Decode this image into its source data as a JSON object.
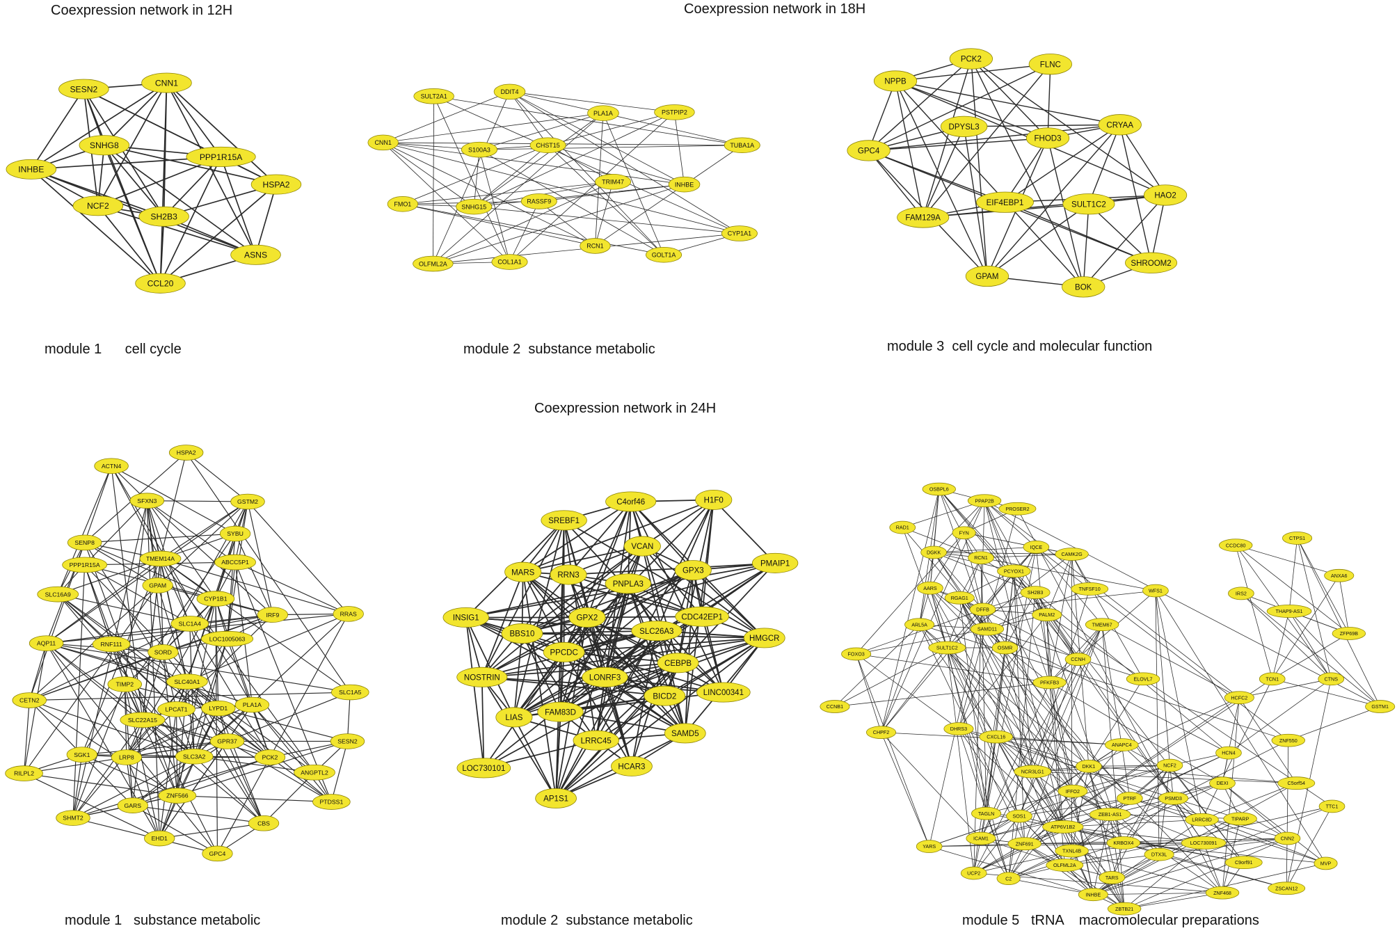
{
  "figure": {
    "title_12h": "Coexpression network in 12H",
    "title_18h": "Coexpression network in 18H",
    "title_24h": "Coexpression network in 24H"
  },
  "captions": {
    "top_left": "module 1      cell cycle",
    "top_middle": "module 2  substance metabolic",
    "top_right": "module 3  cell cycle and molecular function",
    "bottom_left": "module 1   substance metabolic",
    "bottom_middle": "module 2  substance metabolic",
    "bottom_right": "module 5   tRNA    macromolecular preparations"
  },
  "colors": {
    "node_fill": "#f2e52e",
    "node_outline": "#8c8200",
    "edge": "#2a2a2a",
    "text": "#111111"
  },
  "networks": [
    {
      "nodes": [
        "SESN2",
        "CNN1",
        "SNHG8",
        "PPP1R15A",
        "INHBE",
        "HSPA2",
        "NCF2",
        "SH2B3",
        "ASNS",
        "CCL20"
      ]
    },
    {
      "nodes": [
        "SULT2A1",
        "DDIT4",
        "PLA1A",
        "PSTPIP2",
        "CNN1",
        "S100A3",
        "CHST15",
        "TUBA1A",
        "TRIM47",
        "INHBE",
        "FMO1",
        "SNHG15",
        "RASSF9",
        "CYP1A1",
        "RCN1",
        "GOLT1A",
        "OLFML2A",
        "COL1A1"
      ]
    },
    {
      "nodes": [
        "NPPB",
        "PCK2",
        "FLNC",
        "DPYSL3",
        "FHOD3",
        "CRYAA",
        "GPC4",
        "FAM129A",
        "EIF4EBP1",
        "SULT1C2",
        "HAO2",
        "SHROOM2",
        "GPAM",
        "BOK"
      ]
    },
    {
      "nodes": [
        "HSPA2",
        "ACTN4",
        "SFXN3",
        "GSTM2",
        "SYBU",
        "SENP8",
        "PPP1R15A",
        "TMEM14A",
        "ABCC5P1",
        "GPAM",
        "CYP1B1",
        "SLC16A9",
        "IRF9",
        "RRAS",
        "SLC1A4",
        "LOC1005063",
        "AQP11",
        "RNF111",
        "SORD",
        "TIMP2",
        "SLC40A1",
        "SLC1A5",
        "CETN2",
        "LPCAT1",
        "LYPD1",
        "PLA1A",
        "SLC22A15",
        "GPR37",
        "SESN2",
        "SGK1",
        "LRP8",
        "SLC3A2",
        "PCK2",
        "ANGPTL2",
        "RILPL2",
        "ZNF566",
        "GARS",
        "PTDSS1",
        "SHMT2",
        "CBS",
        "EHD1",
        "GPC4"
      ]
    },
    {
      "nodes": [
        "C4orf46",
        "H1F0",
        "SREBF1",
        "VCAN",
        "MARS",
        "RRN3",
        "GPX3",
        "PMAIP1",
        "PNPLA3",
        "INSIG1",
        "CDC42EP1",
        "GPX2",
        "SLC26A3",
        "BBS10",
        "HMGCR",
        "PPCDC",
        "CEBPB",
        "NOSTRIN",
        "LONRF3",
        "LINC00341",
        "BICD2",
        "FAM83D",
        "LIAS",
        "SAMD5",
        "LRRC45",
        "LOC730101",
        "HCAR3",
        "AP1S1"
      ]
    },
    {
      "nodes": [
        "OSBPL6",
        "PPAP2B",
        "PROSER2",
        "RAD1",
        "FYN",
        "DGKK",
        "RCN1",
        "IQCE",
        "CAMK2G",
        "PCYOX1",
        "AARS",
        "RGAG1",
        "SH2B3",
        "TNFSF10",
        "WFS1",
        "DFFB",
        "PALM2",
        "ARL5A",
        "SAMD11",
        "TMEM67",
        "SULT1C2",
        "OSMR",
        "CCNH",
        "PFKFB3",
        "ELOVL7",
        "FOXO3",
        "HCFC2",
        "CCNB1",
        "CHPF2",
        "DHRS3",
        "CXCL16",
        "ANAPC4",
        "NCF2",
        "DKK1",
        "NCR3LG1",
        "IFFO2",
        "PTRF",
        "PSMD3",
        "DEXI",
        "HCN4",
        "ZNF550",
        "C5orf54",
        "TTC1",
        "TIPARP",
        "LRRC8D",
        "ZEB1-AS1",
        "SOS1",
        "TAGLN",
        "ATP6V1B2",
        "KRBOX4",
        "LOC730091",
        "CNN2",
        "ICAM1",
        "ZNF691",
        "TXNL4B",
        "DTX3L",
        "C9orf91",
        "YARS",
        "OLFML2A",
        "TARS",
        "MVP",
        "UCP2",
        "C2",
        "ZNF468",
        "ZSCAN12",
        "INHBE",
        "ZBTB21",
        "CCDC80",
        "CTPS1",
        "IRS2",
        "ANXA6",
        "THAP9-AS1",
        "ZFP69B",
        "TCN1",
        "CTNS",
        "GSTM1"
      ]
    }
  ]
}
